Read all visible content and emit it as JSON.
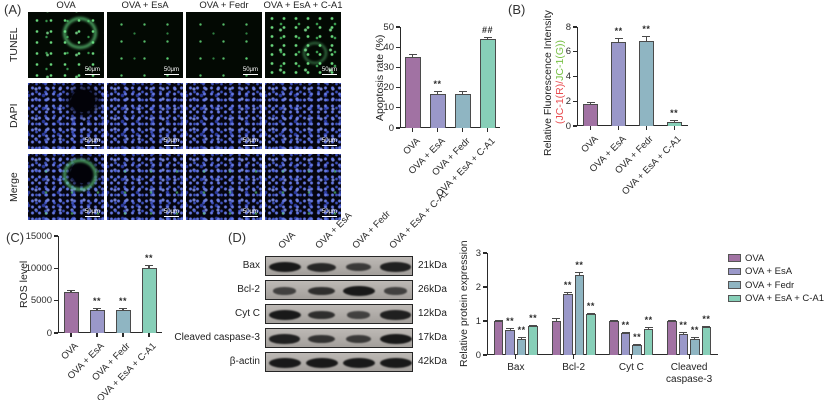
{
  "groups": [
    "OVA",
    "OVA + EsA",
    "OVA + Fedr",
    "OVA + EsA + C-A1"
  ],
  "colors": {
    "ova": "#a172a3",
    "esa": "#9a98c9",
    "fedr": "#8fb5c2",
    "ca1": "#87cfb8",
    "jc1_red": "#e94b4e",
    "jc1_green": "#76c043"
  },
  "panel_a": {
    "label": "(A)",
    "col_headers": [
      "OVA",
      "OVA + EsA",
      "OVA + Fedr",
      "OVA + EsA + C-A1"
    ],
    "row_labels": [
      "TUNEL",
      "DAPI",
      "Merge"
    ],
    "scale_bar_label": "50μm"
  },
  "panel_b": {
    "label": "(B)"
  },
  "panel_c": {
    "label": "(C)"
  },
  "panel_d": {
    "label": "(D)",
    "lane_labels": [
      "OVA",
      "OVA + EsA",
      "OVA + Fedr",
      "OVA + EsA + C-A1"
    ],
    "blot_rows": [
      {
        "protein": "Bax",
        "kda": "21kDa",
        "bands": [
          1,
          0.8,
          0.55,
          0.9
        ]
      },
      {
        "protein": "Bcl-2",
        "kda": "26kDa",
        "bands": [
          0.45,
          0.7,
          1,
          0.45
        ]
      },
      {
        "protein": "Cyt C",
        "kda": "12kDa",
        "bands": [
          1,
          0.7,
          0.45,
          0.9
        ]
      },
      {
        "protein": "Cleaved caspase-3",
        "kda": "17kDa",
        "bands": [
          0.9,
          0.65,
          0.55,
          1
        ]
      },
      {
        "protein": "β-actin",
        "kda": "42kDa",
        "bands": [
          1,
          1,
          1,
          1
        ]
      }
    ]
  },
  "chart_data": [
    {
      "id": "apoptosis",
      "type": "bar",
      "ylabel": "Apoptosis rate (%)",
      "ylim": [
        0,
        50
      ],
      "yticks": [
        0,
        10,
        20,
        30,
        40,
        50
      ],
      "categories": [
        "OVA",
        "OVA + EsA",
        "OVA + Fedr",
        "OVA + EsA + C-A1"
      ],
      "values": [
        35,
        17,
        17,
        44
      ],
      "errors": [
        1.5,
        1.2,
        1.2,
        1.0
      ],
      "significance": [
        "",
        "**",
        "",
        "##"
      ]
    },
    {
      "id": "jc1-fluorescence",
      "type": "bar",
      "ylabel": "Relative Fluorescence Intensity",
      "ylabel_sub_red": "(JC-1(R)/",
      "ylabel_sub_green": "JC-1(G))",
      "ylim": [
        0,
        8
      ],
      "yticks": [
        0,
        2,
        4,
        6,
        8
      ],
      "categories": [
        "OVA",
        "OVA + EsA",
        "OVA + Fedr",
        "OVA + EsA + C-A1"
      ],
      "values": [
        1.8,
        6.8,
        6.9,
        0.35
      ],
      "errors": [
        0.12,
        0.3,
        0.35,
        0.1
      ],
      "significance": [
        "",
        "**",
        "**",
        "**"
      ]
    },
    {
      "id": "ros",
      "type": "bar",
      "ylabel": "ROS level",
      "ylim": [
        0,
        15000
      ],
      "yticks": [
        0,
        5000,
        10000,
        15000
      ],
      "categories": [
        "OVA",
        "OVA + EsA",
        "OVA + Fedr",
        "OVA + EsA + C-A1"
      ],
      "values": [
        6300,
        3500,
        3500,
        10000
      ],
      "errors": [
        300,
        300,
        300,
        500
      ],
      "significance": [
        "",
        "**",
        "**",
        "**"
      ]
    },
    {
      "id": "protein-expression",
      "type": "grouped-bar",
      "ylabel": "Relative protein expression",
      "ylim": [
        0,
        3
      ],
      "yticks": [
        0,
        1,
        2,
        3
      ],
      "categories": [
        "Bax",
        "Bcl-2",
        "Cyt C",
        "Cleaved caspase-3"
      ],
      "series": [
        {
          "name": "OVA",
          "values": [
            1.0,
            1.0,
            1.0,
            1.0
          ],
          "errors": [
            0.04,
            0.08,
            0.04,
            0.04
          ],
          "significance": [
            "",
            "",
            "",
            ""
          ]
        },
        {
          "name": "OVA + EsA",
          "values": [
            0.75,
            1.78,
            0.65,
            0.63
          ],
          "errors": [
            0.04,
            0.06,
            0.04,
            0.04
          ],
          "significance": [
            "**",
            "**",
            "**",
            "**"
          ]
        },
        {
          "name": "OVA + Fedr",
          "values": [
            0.48,
            2.35,
            0.3,
            0.48
          ],
          "errors": [
            0.04,
            0.1,
            0.03,
            0.04
          ],
          "significance": [
            "**",
            "**",
            "**",
            "**"
          ]
        },
        {
          "name": "OVA + EsA + C-A1",
          "values": [
            0.85,
            1.2,
            0.77,
            0.82
          ],
          "errors": [
            0.04,
            0.05,
            0.04,
            0.03
          ],
          "significance": [
            "**",
            "**",
            "**",
            "**"
          ]
        }
      ],
      "legend": [
        "OVA",
        "OVA + EsA",
        "OVA + Fedr",
        "OVA + EsA + C-A1"
      ],
      "legend_position": "right"
    }
  ]
}
